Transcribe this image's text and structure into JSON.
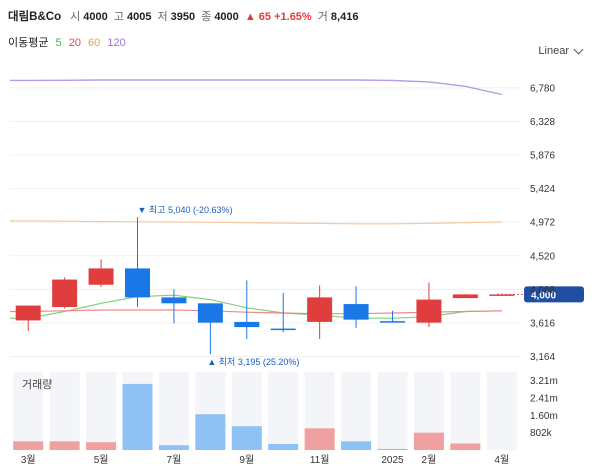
{
  "header": {
    "name": "대림B&Co",
    "open_label": "시",
    "open": "4000",
    "high_label": "고",
    "high": "4005",
    "low_label": "저",
    "low": "3950",
    "close_label": "종",
    "close": "4000",
    "change": "▲ 65 +1.65%",
    "volume_label": "거",
    "volume": "8,416"
  },
  "ma": {
    "label": "이동평균",
    "items": [
      {
        "period": "5",
        "color": "#4caf50"
      },
      {
        "period": "20",
        "color": "#e05050"
      },
      {
        "period": "60",
        "color": "#e8a040"
      },
      {
        "period": "120",
        "color": "#9a70d8"
      }
    ]
  },
  "scale_toggle": "Linear",
  "volume_title": "거래량",
  "chart_data": {
    "type": "candlestick",
    "categories": [
      "2024-03",
      "2024-04",
      "2024-05",
      "2024-06",
      "2024-07",
      "2024-08",
      "2024-09",
      "2024-10",
      "2024-11",
      "2024-12",
      "2025-01",
      "2025-02",
      "2025-03",
      "2025-04"
    ],
    "open": [
      3650,
      3830,
      4130,
      4350,
      3960,
      3880,
      3630,
      3540,
      3630,
      3870,
      3640,
      3620,
      3950,
      3990
    ],
    "high": [
      3840,
      4230,
      4470,
      5040,
      4070,
      3850,
      4190,
      4020,
      4120,
      4110,
      3780,
      4160,
      4005,
      4010
    ],
    "low": [
      3510,
      3810,
      4100,
      3830,
      3610,
      3195,
      3400,
      3490,
      3400,
      3550,
      3620,
      3560,
      3950,
      3980
    ],
    "close": [
      3850,
      4200,
      4350,
      3960,
      3880,
      3620,
      3560,
      3520,
      3960,
      3660,
      3630,
      3930,
      4000,
      4000
    ],
    "colors": {
      "up": "#e03e3e",
      "down": "#1a78e6"
    },
    "ma_lines": {
      "ma5": [
        3680,
        3770,
        3880,
        3970,
        3990,
        3930,
        3820,
        3750,
        3720,
        3680,
        3680,
        3700,
        3770,
        3780
      ],
      "ma20": [
        3770,
        3780,
        3790,
        3790,
        3790,
        3780,
        3760,
        3750,
        3740,
        3740,
        3750,
        3760,
        3770,
        3780
      ],
      "ma60": [
        4990,
        4985,
        4980,
        4978,
        4975,
        4970,
        4965,
        4960,
        4955,
        4950,
        4950,
        4955,
        4965,
        4975
      ],
      "ma120": [
        6880,
        6882,
        6885,
        6886,
        6886,
        6886,
        6886,
        6886,
        6886,
        6886,
        6880,
        6860,
        6800,
        6690
      ]
    },
    "annotations": {
      "high": {
        "label": "▼ 최고 5,040 (-20.63%)",
        "index": 3,
        "value": 5040
      },
      "low": {
        "label": "▲ 최저 3,195 (25.20%)",
        "index": 5,
        "value": 3195
      }
    },
    "current_price_label": "4,000",
    "current_price": 4000,
    "y_ticks": [
      "3,164",
      "3,616",
      "4,068",
      "4,520",
      "4,972",
      "5,424",
      "5,876",
      "6,328",
      "6,780"
    ],
    "ylim": [
      3050,
      7020
    ],
    "volume": [
      0.4,
      0.4,
      0.36,
      3.05,
      0.22,
      1.65,
      1.1,
      0.28,
      1.0,
      0.4,
      0.05,
      0.8,
      0.3,
      0.0
    ],
    "volume_ticks": [
      "3.21m",
      "2.41m",
      "1.60m",
      "802k"
    ],
    "volume_tick_values": [
      3.21,
      2.41,
      1.6,
      0.802
    ],
    "volume_ylim": [
      0,
      3.6
    ],
    "x_labels": [
      {
        "index": 0,
        "label": "3월"
      },
      {
        "index": 2,
        "label": "5월"
      },
      {
        "index": 4,
        "label": "7월"
      },
      {
        "index": 6,
        "label": "9월"
      },
      {
        "index": 8,
        "label": "11월"
      },
      {
        "index": 10,
        "label": "2025"
      },
      {
        "index": 11,
        "label": "2월"
      },
      {
        "index": 13,
        "label": "4월"
      }
    ]
  }
}
